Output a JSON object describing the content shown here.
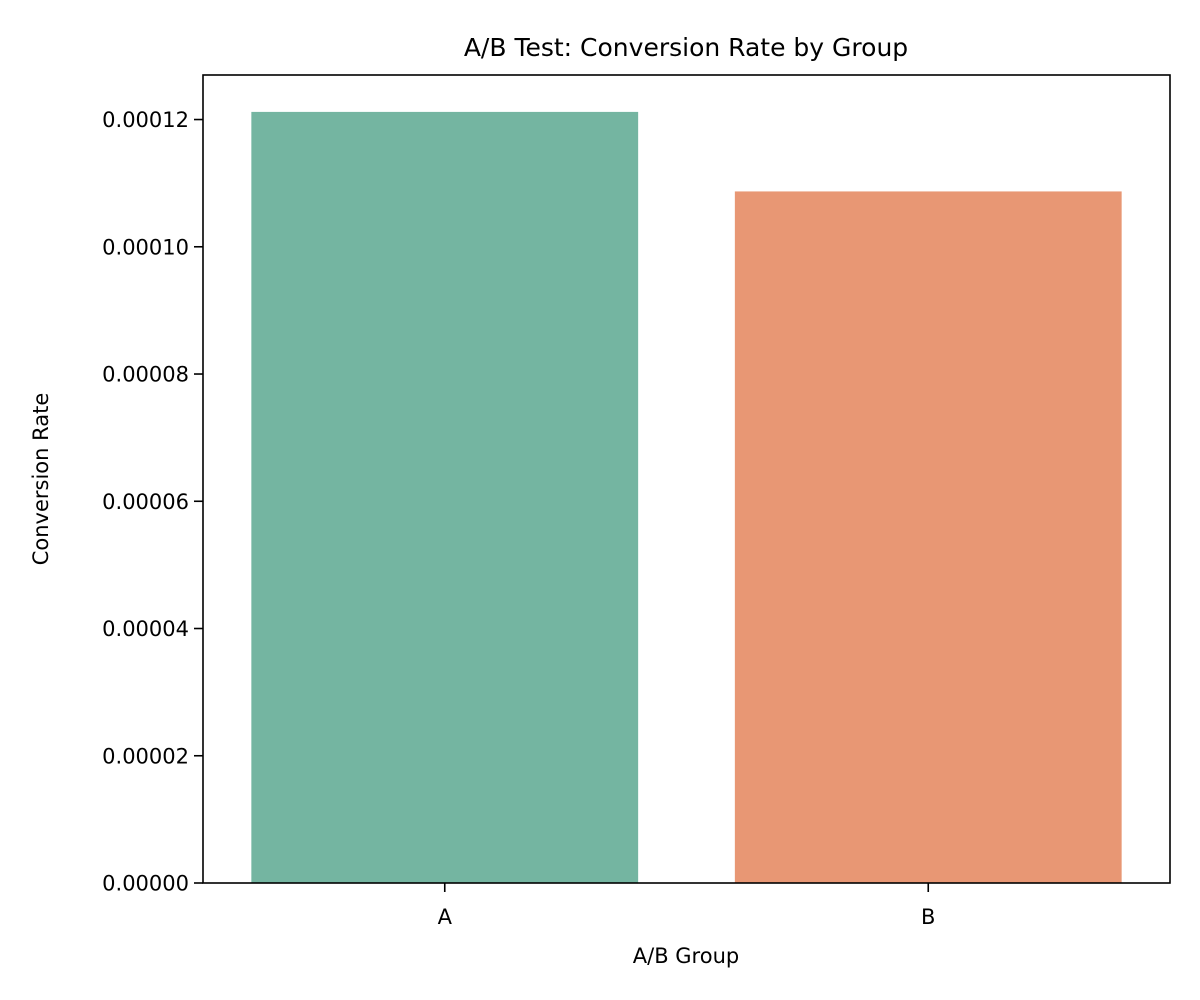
{
  "chart_data": {
    "type": "bar",
    "title": "A/B Test: Conversion Rate by Group",
    "xlabel": "A/B Group",
    "ylabel": "Conversion Rate",
    "categories": [
      "A",
      "B"
    ],
    "values": [
      0.0001212,
      0.0001087
    ],
    "colors": [
      "#74b5a1",
      "#e89774"
    ],
    "ylim": [
      0,
      0.000127
    ],
    "yticks": [
      0,
      2e-05,
      4e-05,
      6e-05,
      8e-05,
      0.0001,
      0.00012
    ],
    "ytick_labels": [
      "0.00000",
      "0.00002",
      "0.00004",
      "0.00006",
      "0.00008",
      "0.00010",
      "0.00012"
    ],
    "grid": false,
    "legend": "none"
  }
}
